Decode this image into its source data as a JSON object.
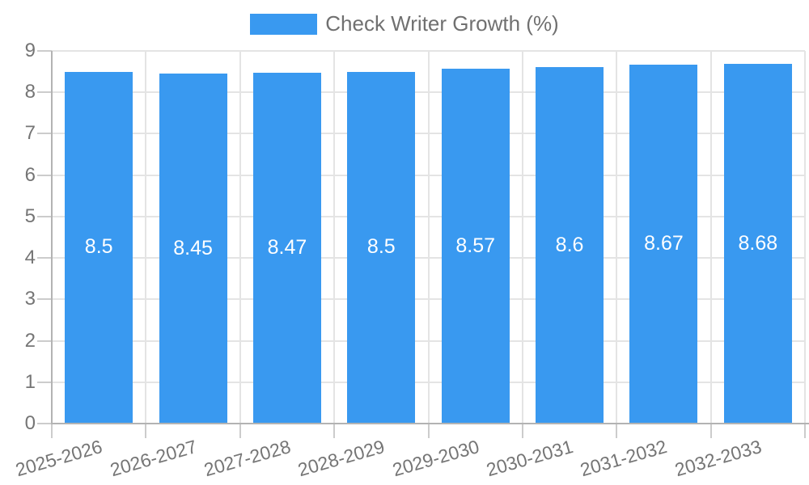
{
  "legend": {
    "label": "Check Writer Growth (%)"
  },
  "colors": {
    "bar": "#3999f0",
    "bar_label": "#ffffff",
    "axis_text": "#757575",
    "legend_text": "#707070",
    "grid": "#e4e4e4",
    "tick": "#cccccc",
    "axis_line": "#b3b3b3",
    "background": "#ffffff"
  },
  "chart_data": {
    "type": "bar",
    "title": "",
    "categories": [
      "2025-2026",
      "2026-2027",
      "2027-2028",
      "2028-2029",
      "2029-2030",
      "2030-2031",
      "2031-2032",
      "2032-2033"
    ],
    "series": [
      {
        "name": "Check Writer Growth (%)",
        "values": [
          8.5,
          8.45,
          8.47,
          8.5,
          8.57,
          8.6,
          8.67,
          8.68
        ]
      }
    ],
    "value_labels": [
      "8.5",
      "8.45",
      "8.47",
      "8.5",
      "8.57",
      "8.6",
      "8.67",
      "8.68"
    ],
    "xlabel": "",
    "ylabel": "",
    "ylim": [
      0,
      9
    ],
    "y_ticks": [
      "0",
      "1",
      "2",
      "3",
      "4",
      "5",
      "6",
      "7",
      "8",
      "9"
    ],
    "grid": true,
    "legend_position": "top",
    "x_tick_rotation_deg": -16
  }
}
